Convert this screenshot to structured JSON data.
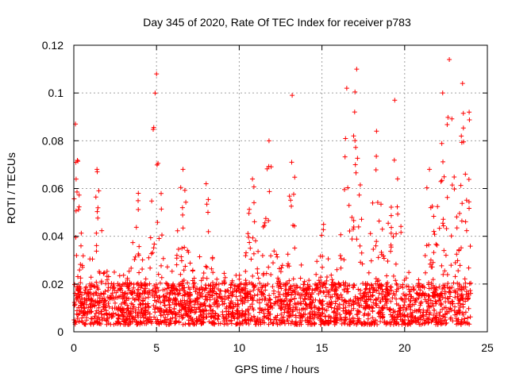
{
  "chart_data": {
    "type": "scatter",
    "title": "Day 345 of 2020, Rate Of TEC Index for receiver p783",
    "xlabel": "GPS time / hours",
    "ylabel": "ROTI / TECUs",
    "xlim": [
      0,
      25
    ],
    "ylim": [
      0,
      0.12
    ],
    "xticks": [
      0,
      5,
      10,
      15,
      20,
      25
    ],
    "yticks": [
      0,
      0.02,
      0.04,
      0.06,
      0.08,
      0.1,
      0.12
    ],
    "xtick_labels": [
      "0",
      "5",
      "10",
      "15",
      "20",
      "25"
    ],
    "ytick_labels": [
      "0",
      "0.02",
      "0.04",
      "0.06",
      "0.08",
      "0.1",
      "0.12"
    ],
    "grid": true,
    "marker": "+",
    "color": "#ff0000",
    "x_data_range": [
      0,
      24
    ],
    "baseline_range": [
      0.003,
      0.025
    ],
    "peaks": [
      {
        "t": 0.1,
        "max": 0.087
      },
      {
        "t": 1.4,
        "max": 0.068
      },
      {
        "t": 3.9,
        "max": 0.058
      },
      {
        "t": 5.0,
        "max": 0.108
      },
      {
        "t": 6.6,
        "max": 0.068
      },
      {
        "t": 8.0,
        "max": 0.062
      },
      {
        "t": 10.8,
        "max": 0.064
      },
      {
        "t": 11.8,
        "max": 0.08
      },
      {
        "t": 13.2,
        "max": 0.099
      },
      {
        "t": 15.1,
        "max": 0.045
      },
      {
        "t": 16.5,
        "max": 0.102
      },
      {
        "t": 17.1,
        "max": 0.11
      },
      {
        "t": 18.3,
        "max": 0.084
      },
      {
        "t": 19.4,
        "max": 0.097
      },
      {
        "t": 21.5,
        "max": 0.068
      },
      {
        "t": 22.3,
        "max": 0.1
      },
      {
        "t": 22.7,
        "max": 0.114
      },
      {
        "t": 23.5,
        "max": 0.104
      },
      {
        "t": 23.9,
        "max": 0.092
      }
    ]
  }
}
